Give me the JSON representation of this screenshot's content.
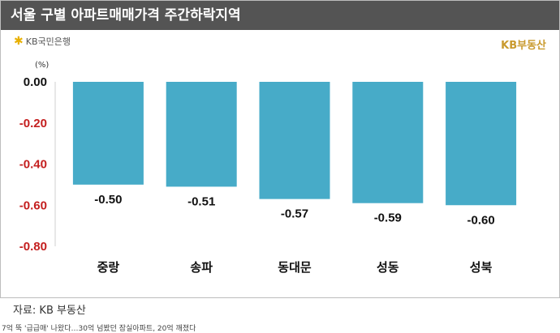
{
  "header": {
    "title": "서울 구별 아파트매매가격 주간하락지역",
    "logo_text": "KB국민은행",
    "brand": "KB부동산",
    "unit": "(%)"
  },
  "footer": {
    "source": "자료: KB 부동산",
    "caption": "7억 뚝 '급급매' 나왔다…30억 넘봤던 잠실아파트, 20억 깨졌다"
  },
  "colors": {
    "bar": "#47abc8",
    "title_bg": "#545454",
    "negative_tick": "#c41f1f"
  },
  "chart_data": {
    "type": "bar",
    "categories": [
      "중랑",
      "송파",
      "동대문",
      "성동",
      "성북"
    ],
    "values": [
      -0.5,
      -0.51,
      -0.57,
      -0.59,
      -0.6
    ],
    "data_labels": [
      "-0.50",
      "-0.51",
      "-0.57",
      "-0.59",
      "-0.60"
    ],
    "title": "서울 구별 아파트매매가격 주간하락지역",
    "ylabel": "(%)",
    "ylim": [
      -0.8,
      0.0
    ],
    "yticks": [
      0.0,
      -0.2,
      -0.4,
      -0.6,
      -0.8
    ],
    "ytick_labels": [
      "0.00",
      "-0.20",
      "-0.40",
      "-0.60",
      "-0.80"
    ],
    "grid": false
  }
}
